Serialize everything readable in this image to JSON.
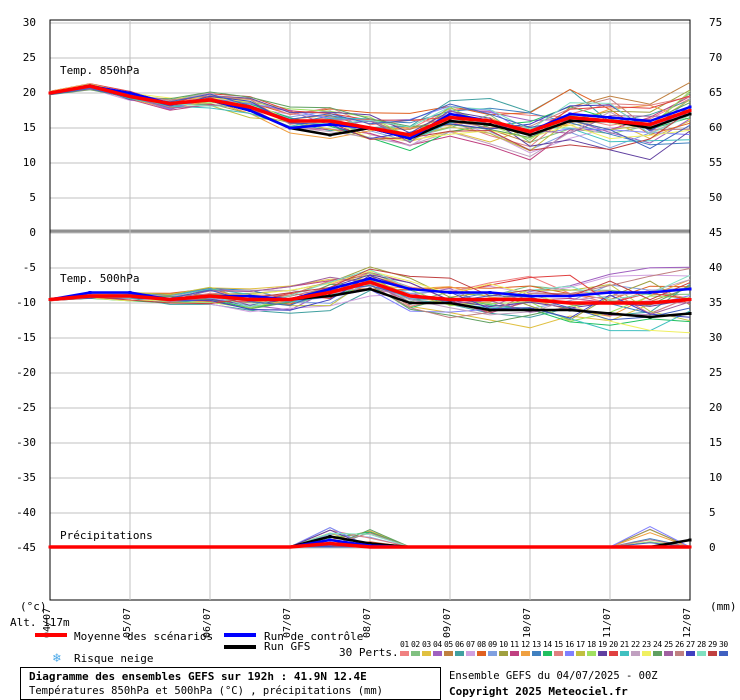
{
  "panels": {
    "t850_label": "Temp. 850hPa",
    "t500_label": "Temp. 500hPa",
    "precip_label": "Précipitations"
  },
  "left_axis_ticks": [
    "30",
    "25",
    "20",
    "15",
    "10",
    "5",
    "0",
    "-5",
    "-10",
    "-15",
    "-20",
    "-25",
    "-30",
    "-35",
    "-40",
    "-45"
  ],
  "right_axis_ticks": [
    "75",
    "70",
    "65",
    "60",
    "55",
    "50",
    "45",
    "40",
    "35",
    "30",
    "25",
    "20",
    "15",
    "10",
    "5",
    "0"
  ],
  "date_labels": [
    "04/07",
    "05/07",
    "06/07",
    "07/07",
    "08/07",
    "09/07",
    "10/07",
    "11/07",
    "12/07"
  ],
  "unit_left": "(°c)",
  "unit_right": "(mm)",
  "altitude": "Alt. 117m",
  "legend": {
    "mean": "Moyenne des scénarios",
    "control": "Run de contrôle",
    "gfs": "Run GFS",
    "snow": "Risque neige",
    "perts": "30 Perts.",
    "colors": {
      "mean": "#ff0000",
      "control": "#0000ff",
      "gfs": "#000000",
      "snow": "#4aa8e8"
    }
  },
  "perturbation_ids": [
    "01",
    "02",
    "03",
    "04",
    "05",
    "06",
    "07",
    "08",
    "09",
    "10",
    "11",
    "12",
    "13",
    "14",
    "15",
    "16",
    "17",
    "18",
    "19",
    "20",
    "21",
    "22",
    "23",
    "24",
    "25",
    "26",
    "27",
    "28",
    "29",
    "30"
  ],
  "perturbation_colors": [
    "#f08080",
    "#80c080",
    "#e0c040",
    "#a060c0",
    "#c08040",
    "#40a0a0",
    "#d0a0e0",
    "#e06020",
    "#80a0e0",
    "#a0a040",
    "#c04080",
    "#f0a040",
    "#4080c0",
    "#20c060",
    "#e08080",
    "#8080ff",
    "#c0c040",
    "#a0e060",
    "#6040a0",
    "#e04040",
    "#40c0c0",
    "#c0a0c0",
    "#f0f060",
    "#60a060",
    "#a060a0",
    "#c08080",
    "#4040c0",
    "#80e0c0",
    "#c04040",
    "#4060c0"
  ],
  "footer": {
    "title": "Diagramme des ensembles GEFS sur 192h : 41.9N 12.4E",
    "subtitle": "Températures 850hPa et 500hPa (°C) , précipitations (mm)",
    "run": "Ensemble GEFS du 04/07/2025 - 00Z",
    "copyright": "Copyright 2025 Meteociel.fr"
  },
  "chart_data": {
    "type": "line",
    "x": [
      0,
      12,
      24,
      36,
      48,
      60,
      72,
      84,
      96,
      108,
      120,
      132,
      144,
      156,
      168,
      180,
      192
    ],
    "x_tick_labels": [
      "04/07",
      "05/07",
      "06/07",
      "07/07",
      "08/07",
      "09/07",
      "10/07",
      "11/07",
      "12/07"
    ],
    "ylim_left": [
      -50,
      30
    ],
    "ylim_right": [
      0,
      75
    ],
    "series": [
      {
        "name": "Moyenne des scénarios",
        "panel": "850hPa",
        "values": [
          20,
          21,
          19.5,
          18.5,
          19,
          18,
          16,
          16,
          15,
          14,
          16.5,
          16,
          14.5,
          16.5,
          16,
          15.5,
          17.5
        ]
      },
      {
        "name": "Run de contrôle",
        "panel": "850hPa",
        "values": [
          20,
          21,
          20,
          18.5,
          19,
          17.5,
          15,
          15.5,
          15,
          13.5,
          17,
          16,
          14.5,
          17,
          16.5,
          16,
          18
        ]
      },
      {
        "name": "Run GFS",
        "panel": "850hPa",
        "values": [
          20,
          21,
          19.5,
          18.5,
          19,
          17.5,
          15,
          14,
          15,
          13.5,
          16,
          15.5,
          14,
          16,
          16,
          15,
          17
        ]
      },
      {
        "name": "Moyenne des scénarios",
        "panel": "500hPa",
        "values": [
          -9.5,
          -9,
          -9,
          -9.5,
          -9,
          -9.5,
          -9.5,
          -8.5,
          -7,
          -9,
          -9.5,
          -9.5,
          -9.5,
          -10,
          -10,
          -10,
          -9.5
        ]
      },
      {
        "name": "Run de contrôle",
        "panel": "500hPa",
        "values": [
          -9.5,
          -8.5,
          -8.5,
          -9.5,
          -9,
          -9,
          -9.5,
          -8,
          -6.5,
          -8,
          -8.5,
          -8.5,
          -9,
          -9,
          -8.5,
          -8.5,
          -8
        ]
      },
      {
        "name": "Run GFS",
        "panel": "500hPa",
        "values": [
          -9.5,
          -9,
          -9,
          -9.5,
          -9,
          -9.5,
          -9.5,
          -9,
          -8,
          -10,
          -10,
          -11,
          -11,
          -11,
          -11.5,
          -12,
          -11.5
        ]
      },
      {
        "name": "Moyenne des scénarios",
        "panel": "precip",
        "values": [
          0,
          0,
          0,
          0,
          0,
          0,
          0,
          0.5,
          0,
          0,
          0,
          0,
          0,
          0,
          0,
          0,
          0
        ]
      },
      {
        "name": "Run de contrôle",
        "panel": "precip",
        "values": [
          0,
          0,
          0,
          0,
          0,
          0,
          0,
          1,
          0.2,
          0,
          0,
          0,
          0,
          0,
          0,
          0,
          0
        ]
      },
      {
        "name": "Run GFS",
        "panel": "precip",
        "values": [
          0,
          0,
          0,
          0,
          0,
          0,
          0,
          1.5,
          0.5,
          0,
          0,
          0,
          0,
          0,
          0,
          0,
          1
        ]
      }
    ],
    "grid": true
  }
}
